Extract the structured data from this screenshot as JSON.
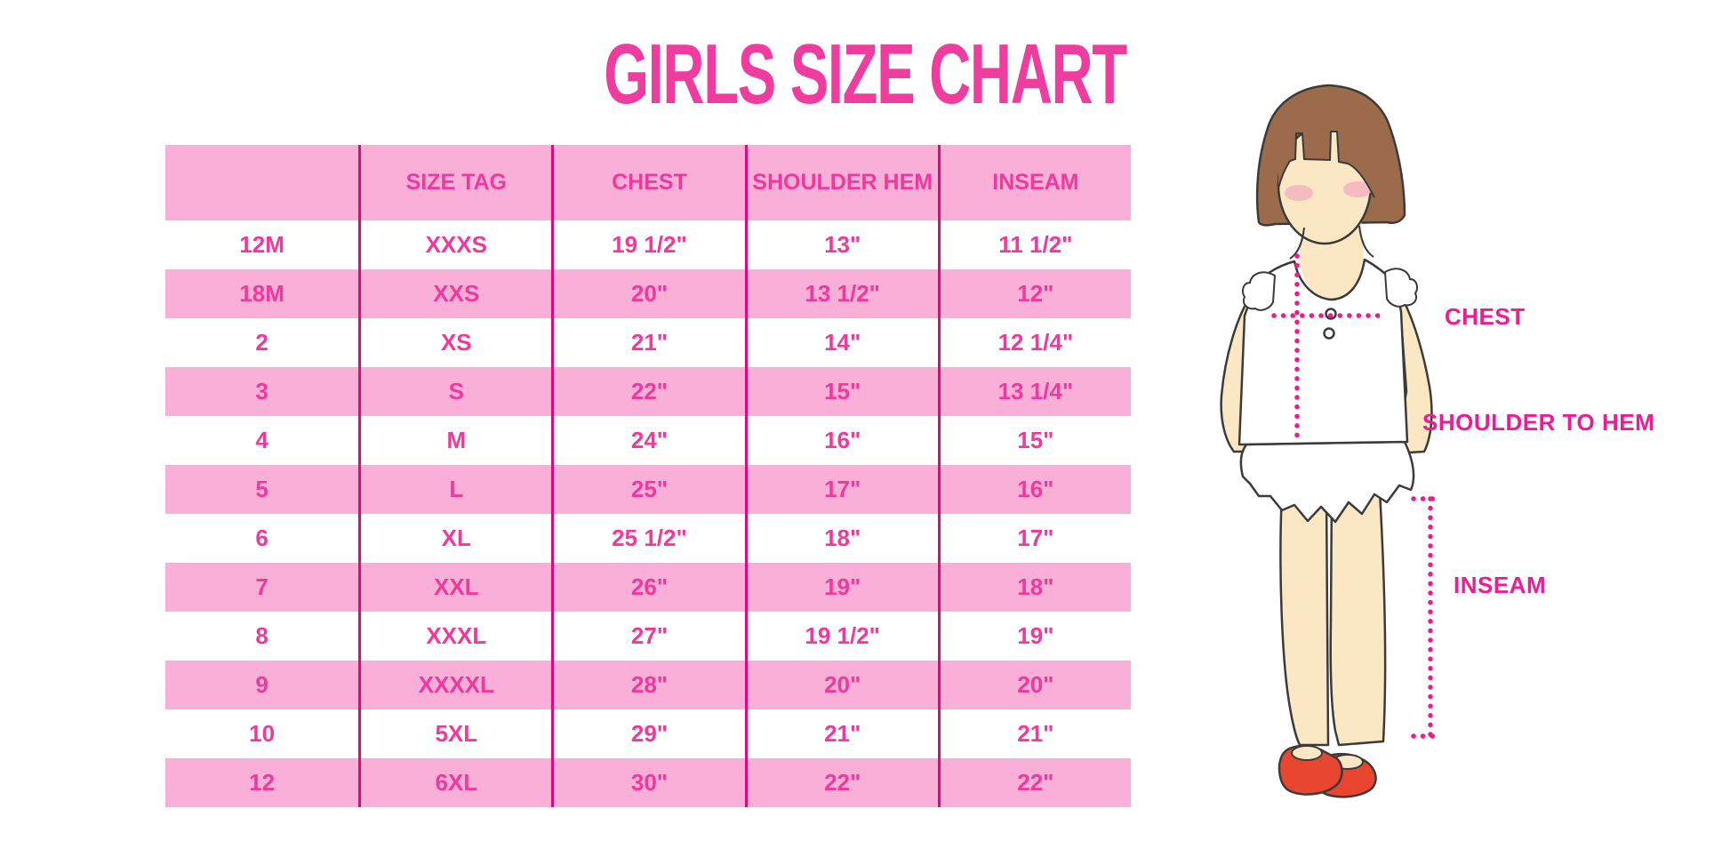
{
  "title": "GIRLS SIZE CHART",
  "chart_data": {
    "type": "table",
    "title": "GIRLS SIZE CHART",
    "columns": [
      "",
      "SIZE TAG",
      "CHEST",
      "SHOULDER HEM",
      "INSEAM"
    ],
    "rows": [
      [
        "12M",
        "XXXS",
        "19 1/2\"",
        "13\"",
        "11 1/2\""
      ],
      [
        "18M",
        "XXS",
        "20\"",
        "13 1/2\"",
        "12\""
      ],
      [
        "2",
        "XS",
        "21\"",
        "14\"",
        "12 1/4\""
      ],
      [
        "3",
        "S",
        "22\"",
        "15\"",
        "13 1/4\""
      ],
      [
        "4",
        "M",
        "24\"",
        "16\"",
        "15\""
      ],
      [
        "5",
        "L",
        "25\"",
        "17\"",
        "16\""
      ],
      [
        "6",
        "XL",
        "25 1/2\"",
        "18\"",
        "17\""
      ],
      [
        "7",
        "XXL",
        "26\"",
        "19\"",
        "18\""
      ],
      [
        "8",
        "XXXL",
        "27\"",
        "19 1/2\"",
        "19\""
      ],
      [
        "9",
        "XXXXL",
        "28\"",
        "20\"",
        "20\""
      ],
      [
        "10",
        "5XL",
        "29\"",
        "21\"",
        "21\""
      ],
      [
        "12",
        "6XL",
        "30\"",
        "22\"",
        "22\""
      ]
    ],
    "row_stripe_pattern": "white/pink alternating, header pink",
    "units": "inches"
  },
  "figure": {
    "labels": {
      "chest": "CHEST",
      "shoulder_to_hem": "SHOULDER TO HEM",
      "inseam": "INSEAM"
    }
  },
  "colors": {
    "title_pink": "#EF3D9F",
    "table_text_pink": "#F0399C",
    "row_pink": "#F9AFD7",
    "divider_magenta": "#E0087E",
    "dotted_line_magenta": "#EC1C8D",
    "label_magenta": "#EE1B96",
    "hair_brown": "#9C6B4B",
    "skin": "#FBE7C4",
    "blush": "#F5AFC0",
    "shoe_red": "#E8462F"
  }
}
